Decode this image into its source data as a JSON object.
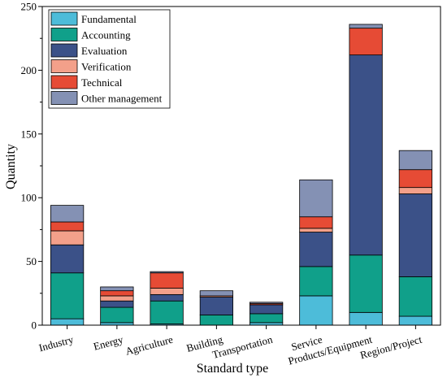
{
  "chart_data": {
    "type": "bar",
    "stacked": true,
    "xlabel": "Standard type",
    "ylabel": "Quantity",
    "ylim": [
      0,
      250
    ],
    "yticks": [
      0,
      50,
      100,
      150,
      200,
      250
    ],
    "grid": false,
    "legend_position": "top-left",
    "categories": [
      "Industry",
      "Energy",
      "Agriculture",
      "Building",
      "Transportation",
      "Service",
      "Products/Equipment",
      "Region/Project"
    ],
    "series": [
      {
        "name": "Fundamental",
        "color": "#4dbcd9",
        "values": [
          5,
          2,
          1,
          0,
          2,
          23,
          10,
          7
        ]
      },
      {
        "name": "Accounting",
        "color": "#10a08a",
        "values": [
          36,
          12,
          18,
          8,
          7,
          23,
          45,
          31
        ]
      },
      {
        "name": "Evaluation",
        "color": "#3b5188",
        "values": [
          22,
          5,
          5,
          14,
          7,
          27,
          157,
          65
        ]
      },
      {
        "name": "Verification",
        "color": "#f3a08a",
        "values": [
          11,
          4,
          5,
          1,
          0,
          3,
          0,
          5
        ]
      },
      {
        "name": "Technical",
        "color": "#e64b35",
        "values": [
          7,
          4,
          12,
          0,
          1,
          9,
          21,
          14
        ]
      },
      {
        "name": "Other management",
        "color": "#8491b4",
        "values": [
          13,
          3,
          1,
          4,
          1,
          29,
          3,
          15
        ]
      }
    ]
  }
}
